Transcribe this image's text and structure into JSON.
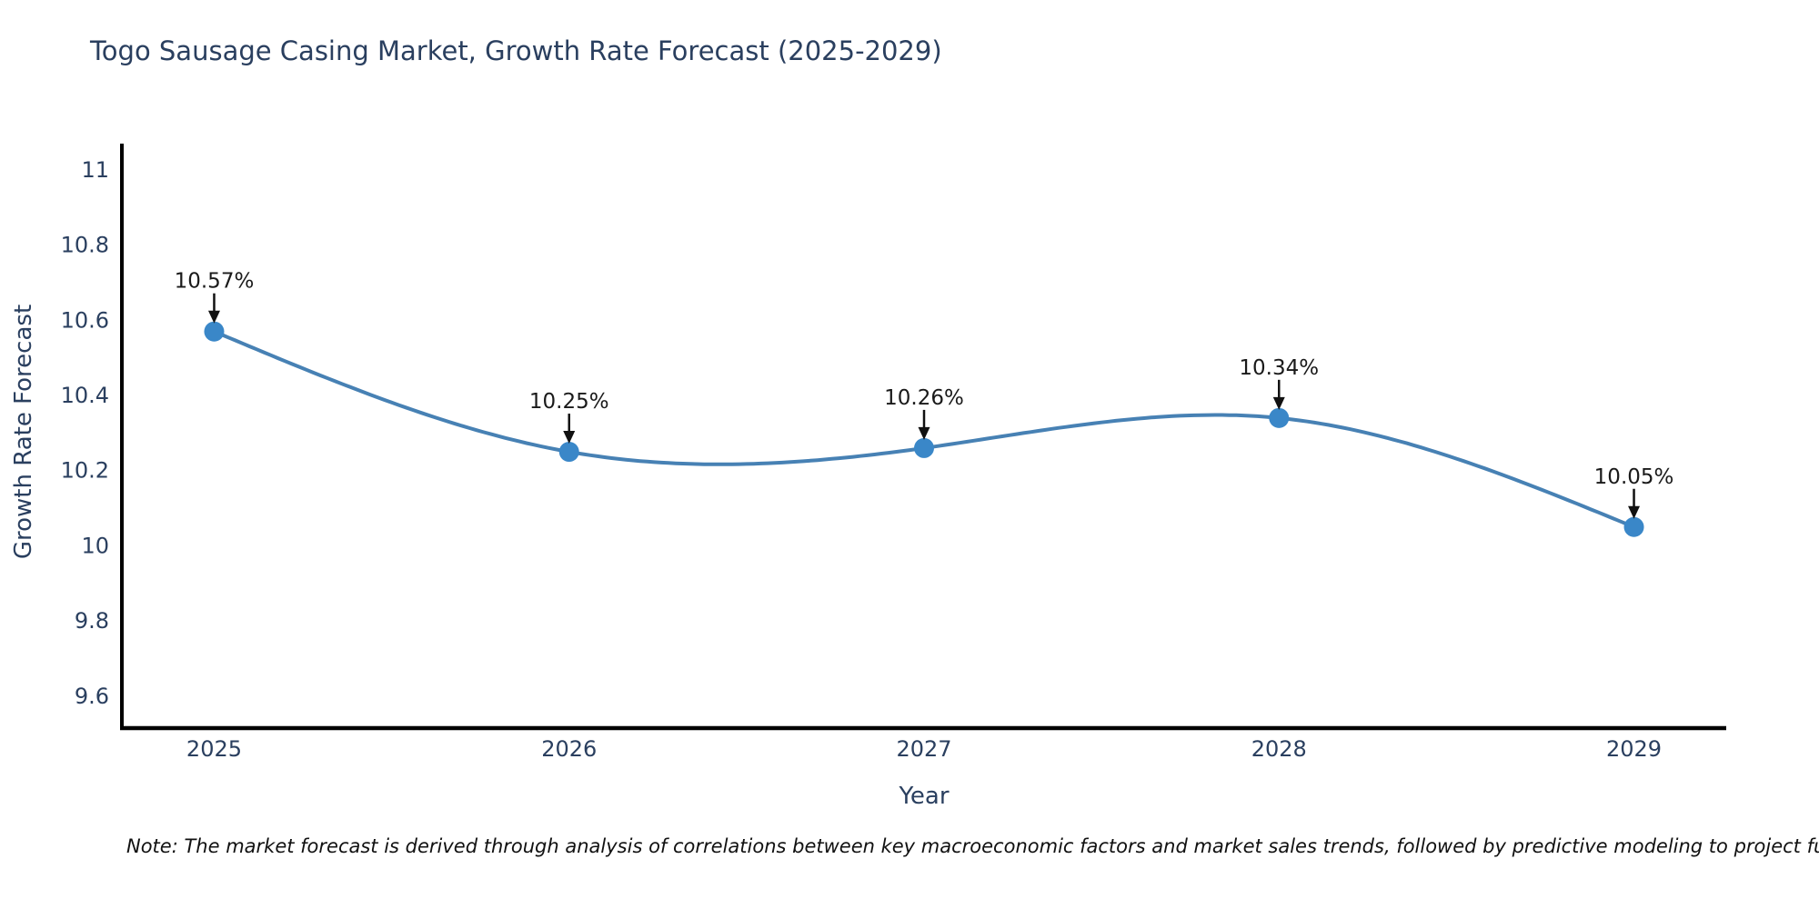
{
  "title": "Togo Sausage Casing Market, Growth Rate Forecast (2025-2029)",
  "note": "Note: The market forecast is derived through analysis of correlations between key macroeconomic factors and market sales trends, followed by predictive modeling to project future sal",
  "chart_data": {
    "type": "line",
    "title": "Togo Sausage Casing Market, Growth Rate Forecast (2025-2029)",
    "x": [
      2025,
      2026,
      2027,
      2028,
      2029
    ],
    "values": [
      10.57,
      10.25,
      10.26,
      10.34,
      10.05
    ],
    "point_labels": [
      "10.57%",
      "10.25%",
      "10.26%",
      "10.34%",
      "10.05%"
    ],
    "xtick_labels": [
      "2025",
      "2026",
      "2027",
      "2028",
      "2029"
    ],
    "yticks": [
      11,
      10.8,
      10.6,
      10.4,
      10.2,
      10,
      9.8,
      9.6
    ],
    "ytick_labels": [
      "11",
      "10.8",
      "10.6",
      "10.4",
      "10.2",
      "10",
      "9.8",
      "9.6"
    ],
    "xlabel": "Year",
    "ylabel": "Growth Rate Forecast",
    "xlim": [
      2024.74,
      2029.26
    ],
    "ylim": [
      9.515,
      11.065
    ],
    "grid": false,
    "smooth": true,
    "legend": "none",
    "line_color": "#4781b4",
    "marker_color": "#3a87c8",
    "annotation_color": "#111111",
    "text_color": "#2a3f5f",
    "axis_color": "#000000"
  }
}
